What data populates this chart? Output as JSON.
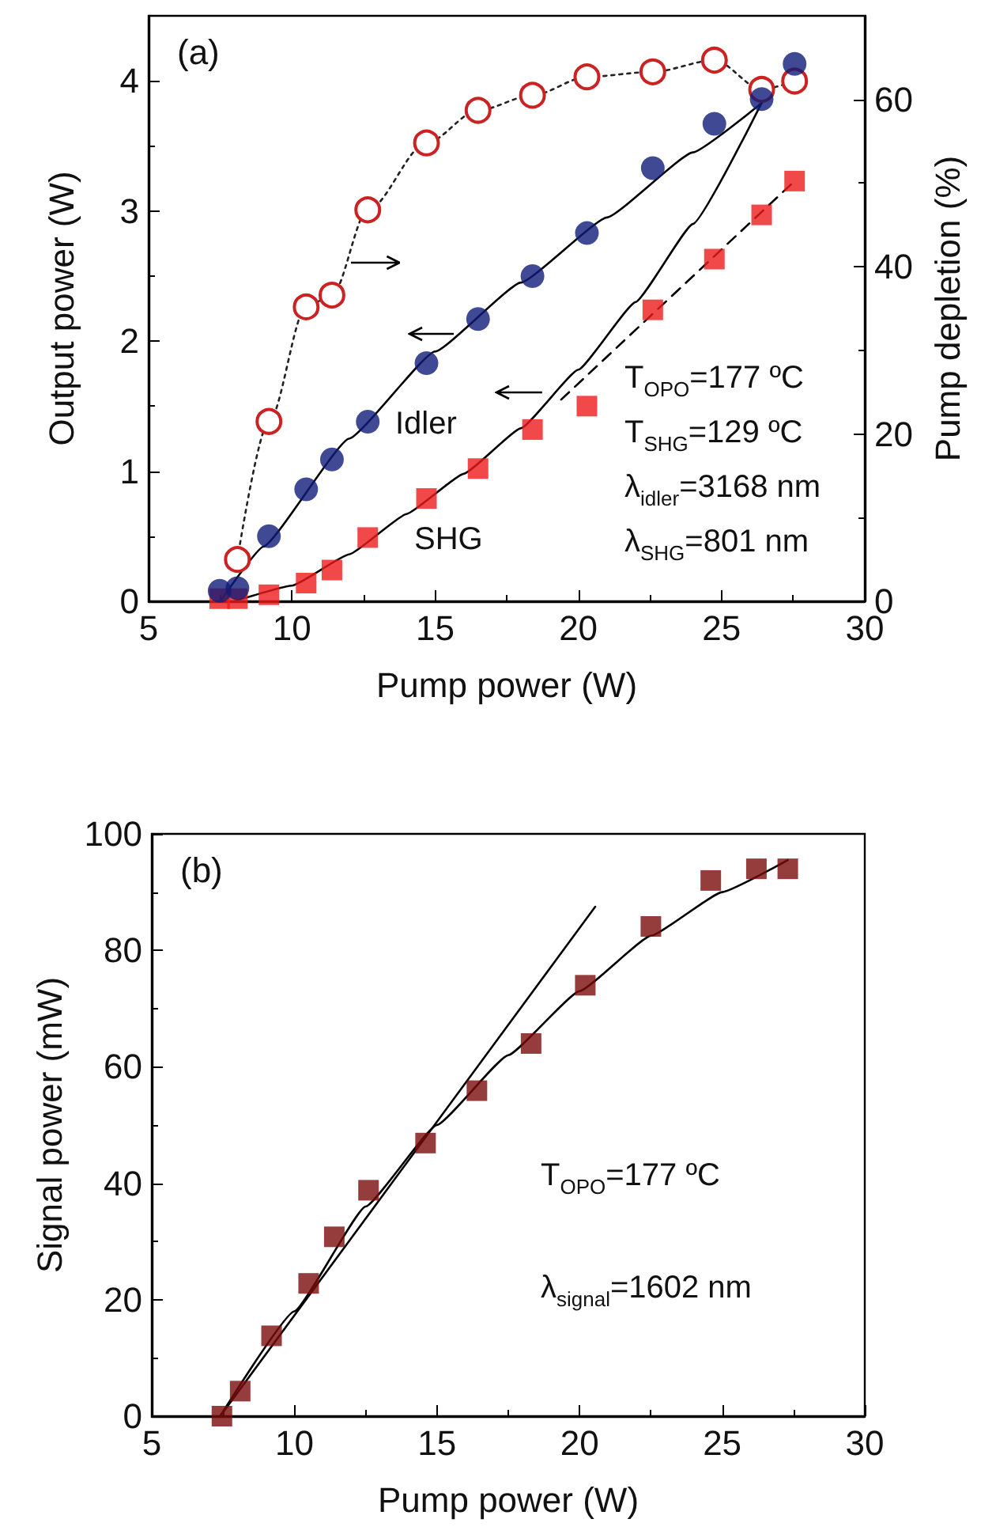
{
  "chart_data": [
    {
      "type": "scatter",
      "xlabel": "Pump power (W)",
      "ylabel": "Output power (W)",
      "y2label": "Pump depletion (%)",
      "xlim": [
        5,
        30
      ],
      "xticks": [
        5,
        10,
        15,
        20,
        25,
        30
      ],
      "ylim": [
        0,
        4.5
      ],
      "yticks": [
        0,
        1,
        2,
        3,
        4
      ],
      "y2lim": [
        0,
        70
      ],
      "y2ticks": [
        0,
        20,
        40,
        60
      ],
      "grid": false,
      "annotations": [
        "(a)",
        "Idler",
        "SHG",
        "T$_{OPO}$=177 ºC",
        "T$_{SHG}$=129 ºC",
        "λ$_{idler}$=3168 nm",
        "λ$_{SHG}$=801 nm"
      ],
      "series": [
        {
          "type": "scatter",
          "color": "#101c78",
          "marker": "circle",
          "x": [
            7.48,
            8.1,
            9.2,
            10.5,
            11.4,
            12.65,
            14.7,
            16.5,
            18.4,
            20.3,
            22.6,
            24.75,
            26.4,
            27.55
          ],
          "values": [
            0.08,
            0.1,
            0.5,
            0.86,
            1.09,
            1.38,
            1.83,
            2.17,
            2.5,
            2.83,
            3.33,
            3.67,
            3.86,
            4.13
          ]
        },
        {
          "type": "scatter",
          "color": "#ee1c1c",
          "marker": "square",
          "x": [
            7.48,
            8.1,
            9.2,
            10.5,
            11.4,
            12.65,
            14.7,
            16.5,
            18.4,
            20.3,
            22.6,
            24.75,
            26.4,
            27.55
          ],
          "values": [
            0.02,
            0.02,
            0.05,
            0.14,
            0.24,
            0.49,
            0.79,
            1.02,
            1.32,
            1.5,
            2.24,
            2.63,
            2.97,
            3.23
          ]
        },
        {
          "type": "line",
          "color": "#cc2222",
          "marker": "circle",
          "line_style": "dotted",
          "axis": "y2",
          "x": [
            8.1,
            9.2,
            10.5,
            11.4,
            12.65,
            14.7,
            16.5,
            18.4,
            20.3,
            22.6,
            24.75,
            26.4,
            27.55
          ],
          "values": [
            5,
            21.5,
            35.2,
            36.6,
            46.8,
            54.8,
            58.7,
            60.5,
            62.7,
            63.3,
            64.7,
            61.2,
            62.2
          ]
        },
        {
          "type": "line",
          "color": "#000000",
          "marker": "none",
          "line_style": "solid",
          "x": [
            7.5,
            9,
            12,
            15,
            18,
            21,
            24,
            26.4
          ],
          "values": [
            0,
            0.42,
            1.25,
            1.92,
            2.45,
            2.95,
            3.45,
            3.83
          ]
        },
        {
          "type": "line",
          "color": "#000000",
          "marker": "none",
          "line_style": "solid",
          "x": [
            8,
            10,
            12,
            14,
            16,
            18,
            20,
            22,
            24,
            26.4
          ],
          "values": [
            0,
            0.12,
            0.36,
            0.67,
            0.98,
            1.33,
            1.78,
            2.3,
            2.9,
            3.83
          ]
        },
        {
          "type": "line",
          "color": "#000000",
          "marker": "none",
          "line_style": "dashed",
          "x": [
            19.4,
            27.55
          ],
          "values": [
            1.55,
            3.23
          ]
        }
      ]
    },
    {
      "type": "scatter",
      "xlabel": "Pump power (W)",
      "ylabel": "Signal power (mW)",
      "xlim": [
        5,
        30
      ],
      "xticks": [
        5,
        10,
        15,
        20,
        25,
        30
      ],
      "ylim": [
        0,
        100
      ],
      "yticks": [
        0,
        20,
        40,
        60,
        80,
        100
      ],
      "grid": false,
      "annotations": [
        "(b)",
        "T$_{OPO}$=177 ºC",
        "λ$_{signal}$=1602 nm"
      ],
      "series": [
        {
          "type": "scatter",
          "color": "#7a0c0c",
          "marker": "square",
          "x": [
            7.46,
            8.1,
            9.2,
            10.5,
            11.4,
            12.6,
            14.6,
            16.4,
            18.3,
            20.2,
            22.5,
            24.6,
            26.2,
            27.3
          ],
          "values": [
            0,
            4.3,
            13.8,
            22.8,
            30.8,
            38.8,
            46.9,
            55.9,
            64,
            74,
            84.1,
            92,
            94,
            94
          ]
        },
        {
          "type": "line",
          "color": "#000000",
          "marker": "none",
          "line_style": "solid",
          "x": [
            7.4,
            10,
            12.5,
            15,
            17.5,
            20,
            22.5,
            25,
            27.3
          ],
          "values": [
            0,
            18,
            36,
            50,
            62,
            73,
            82.5,
            90,
            95.5
          ]
        },
        {
          "type": "line",
          "color": "#000000",
          "marker": "none",
          "line_style": "solid",
          "x": [
            7.4,
            20.55
          ],
          "values": [
            0,
            87.5
          ]
        }
      ]
    }
  ]
}
